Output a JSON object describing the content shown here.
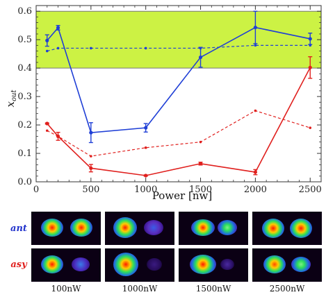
{
  "chart_data": {
    "type": "line",
    "xlabel": "Power [nw]",
    "ylabel_main": "x",
    "ylabel_sub": "out",
    "xlim": [
      0,
      2600
    ],
    "ylim": [
      0,
      0.62
    ],
    "xticks": [
      0,
      500,
      1000,
      1500,
      2000,
      2500
    ],
    "yticks": [
      0.0,
      0.1,
      0.2,
      0.3,
      0.4,
      0.5,
      0.6
    ],
    "ytick_labels": [
      "0.0",
      "0.1",
      "0.2",
      "0.3",
      "0.4",
      "0.5",
      "0.6"
    ],
    "band": {
      "y0": 0.4,
      "y1": 0.6,
      "color": "#ccf244"
    },
    "series": [
      {
        "color": "#1f3fd6",
        "dashed": false,
        "x": [
          100,
          200,
          500,
          1000,
          1500,
          2000,
          2500
        ],
        "y": [
          0.497,
          0.542,
          0.173,
          0.19,
          0.438,
          0.543,
          0.503
        ],
        "err": [
          0.02,
          0.008,
          0.035,
          0.015,
          0.035,
          0.057,
          0.02
        ]
      },
      {
        "color": "#1f3fd6",
        "dashed": true,
        "x": [
          100,
          200,
          500,
          1000,
          1500,
          2000,
          2500
        ],
        "y": [
          0.46,
          0.47,
          0.47,
          0.47,
          0.47,
          0.48,
          0.48
        ],
        "err": [
          0,
          0,
          0,
          0,
          0,
          0,
          0
        ]
      },
      {
        "color": "#e0201e",
        "dashed": false,
        "x": [
          100,
          200,
          500,
          1000,
          1500,
          2000,
          2500
        ],
        "y": [
          0.205,
          0.16,
          0.048,
          0.022,
          0.064,
          0.034,
          0.402
        ],
        "err": [
          0.002,
          0.014,
          0.013,
          0.002,
          0.005,
          0.009,
          0.038
        ]
      },
      {
        "color": "#e0201e",
        "dashed": true,
        "x": [
          100,
          200,
          500,
          1000,
          1500,
          2000,
          2500
        ],
        "y": [
          0.18,
          0.16,
          0.09,
          0.12,
          0.14,
          0.25,
          0.19
        ],
        "err": [
          0,
          0,
          0,
          0,
          0,
          0,
          0
        ]
      }
    ]
  },
  "image_grid": {
    "rows": [
      {
        "label": "ant",
        "color": "#2233cc"
      },
      {
        "label": "asy",
        "color": "#e0201e"
      }
    ],
    "columns": [
      "100nW",
      "1000nW",
      "1500nW",
      "2500nW"
    ]
  }
}
